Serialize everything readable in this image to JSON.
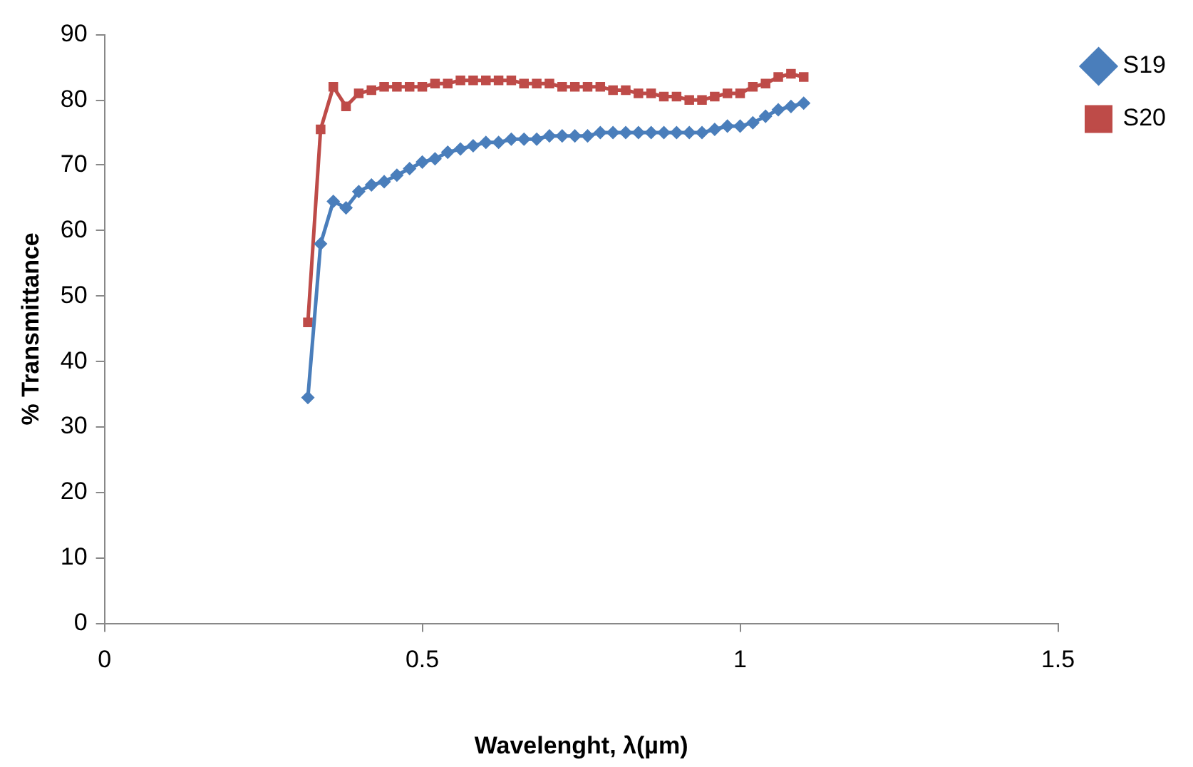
{
  "chart_data": {
    "type": "line",
    "xlabel": "Wavelenght, λ(µm)",
    "ylabel": "% Transmittance",
    "xlim": [
      0,
      1.5
    ],
    "xticks": [
      0,
      0.5,
      1,
      1.5
    ],
    "ylim": [
      0,
      90
    ],
    "yticks": [
      0,
      10,
      20,
      30,
      40,
      50,
      60,
      70,
      80,
      90
    ],
    "legend": "top right",
    "x": [
      0.32,
      0.34,
      0.36,
      0.38,
      0.4,
      0.42,
      0.44,
      0.46,
      0.48,
      0.5,
      0.52,
      0.54,
      0.56,
      0.58,
      0.6,
      0.62,
      0.64,
      0.66,
      0.68,
      0.7,
      0.72,
      0.74,
      0.76,
      0.78,
      0.8,
      0.82,
      0.84,
      0.86,
      0.88,
      0.9,
      0.92,
      0.94,
      0.96,
      0.98,
      1.0,
      1.02,
      1.04,
      1.06,
      1.08,
      1.1
    ],
    "series": [
      {
        "name": "S19",
        "color": "#4a7ebb",
        "marker": "diamond",
        "values": [
          34.5,
          58,
          64.5,
          63.5,
          66,
          67,
          67.5,
          68.5,
          69.5,
          70.5,
          71,
          72,
          72.5,
          73,
          73.5,
          73.5,
          74,
          74,
          74,
          74.5,
          74.5,
          74.5,
          74.5,
          75,
          75,
          75,
          75,
          75,
          75,
          75,
          75,
          75,
          75.5,
          76,
          76,
          76.5,
          77.5,
          78.5,
          79,
          79.5
        ]
      },
      {
        "name": "S20",
        "color": "#be4b48",
        "marker": "square",
        "values": [
          46,
          75.5,
          82,
          79,
          81,
          81.5,
          82,
          82,
          82,
          82,
          82.5,
          82.5,
          83,
          83,
          83,
          83,
          83,
          82.5,
          82.5,
          82.5,
          82,
          82,
          82,
          82,
          81.5,
          81.5,
          81,
          81,
          80.5,
          80.5,
          80,
          80,
          80.5,
          81,
          81,
          82,
          82.5,
          83.5,
          84,
          83.5
        ]
      }
    ]
  }
}
